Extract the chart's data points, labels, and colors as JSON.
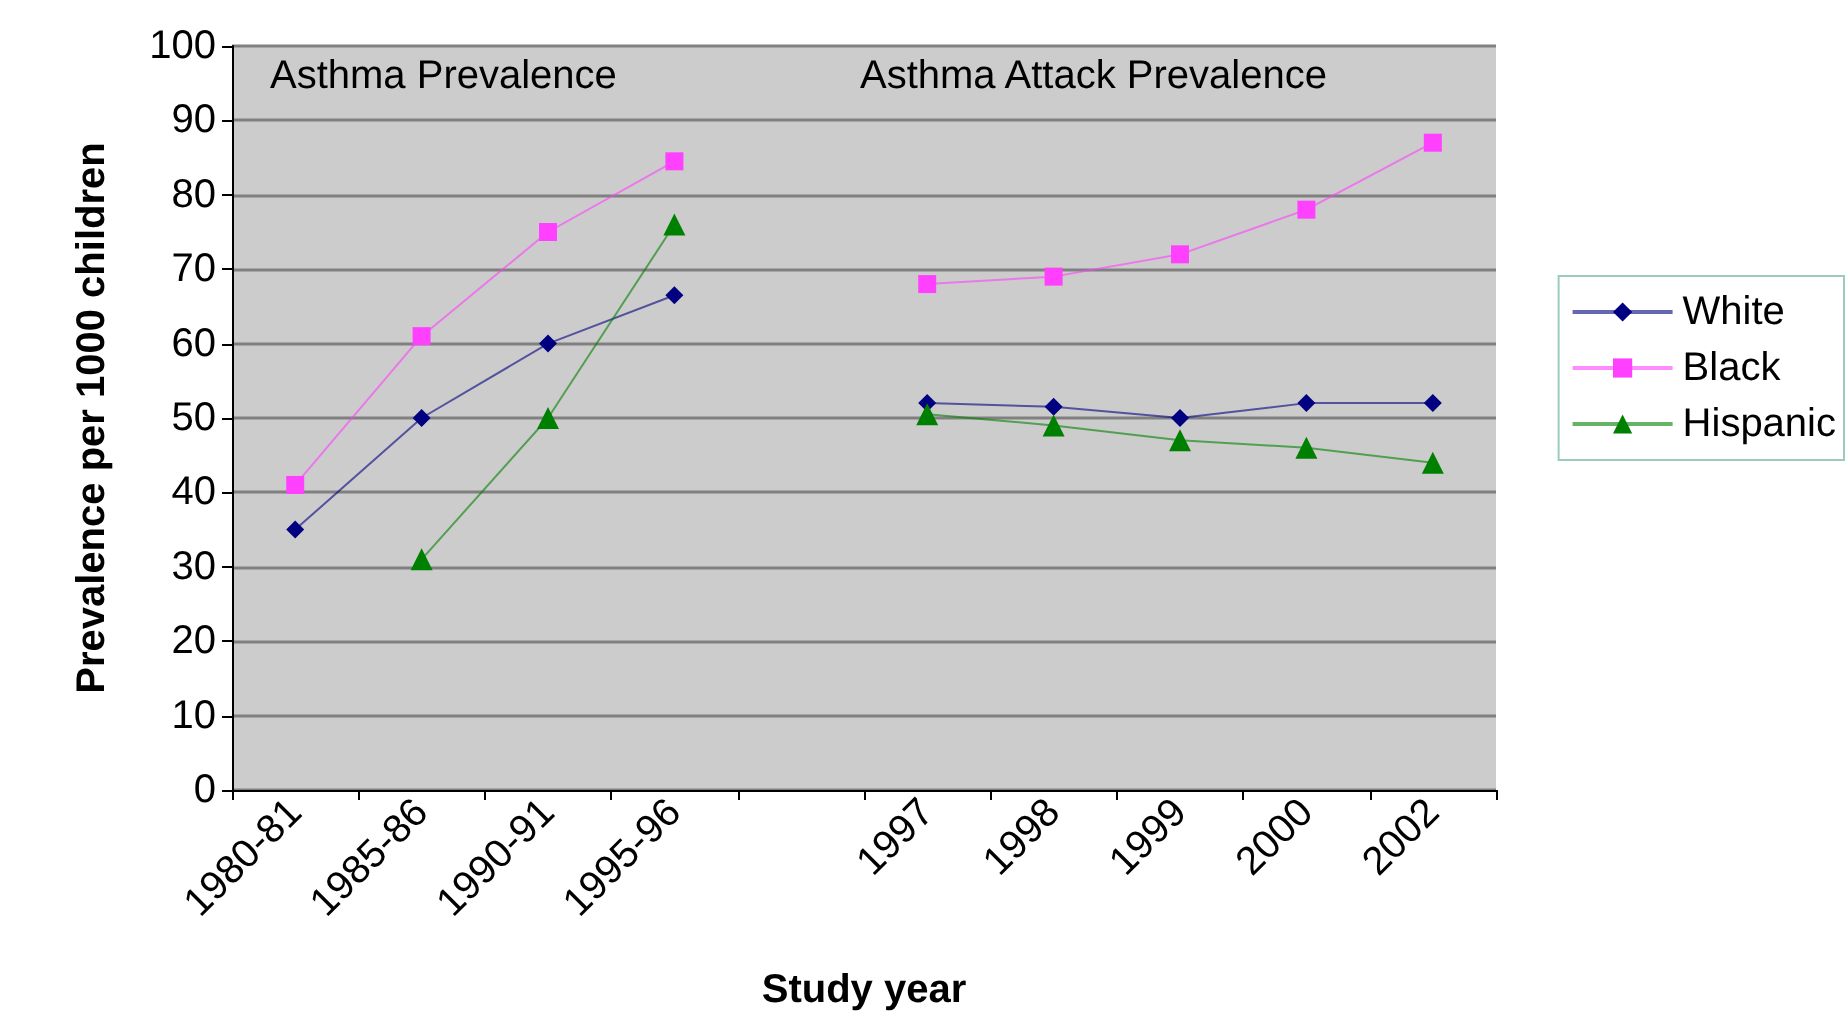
{
  "chart_data": {
    "type": "line",
    "xlabel": "Study year",
    "ylabel": "Prevalence per 1000 children",
    "categories": [
      "1980-81",
      "1985-86",
      "1990-91",
      "1995-96",
      null,
      "1997",
      "1998",
      "1999",
      "2000",
      "2002"
    ],
    "series": [
      {
        "name": "White",
        "color": "#000080",
        "marker": "diamond",
        "values": [
          35,
          50,
          60,
          66.5,
          null,
          52,
          51.5,
          50,
          52,
          52
        ]
      },
      {
        "name": "Black",
        "color": "#ff40ff",
        "marker": "square",
        "values": [
          41,
          61,
          75,
          84.5,
          null,
          68,
          69,
          72,
          78,
          87
        ]
      },
      {
        "name": "Hispanic",
        "color": "#008000",
        "marker": "triangle",
        "values": [
          null,
          31,
          50,
          76,
          null,
          50.5,
          49,
          47,
          46,
          44
        ]
      }
    ],
    "annotations": [
      "Asthma Prevalence",
      "Asthma Attack Prevalence"
    ],
    "ylim": [
      0,
      100
    ],
    "yticks": [
      0,
      10,
      20,
      30,
      40,
      50,
      60,
      70,
      80,
      90,
      100
    ],
    "grid": "y",
    "legend": "right",
    "line_style": "solid"
  }
}
